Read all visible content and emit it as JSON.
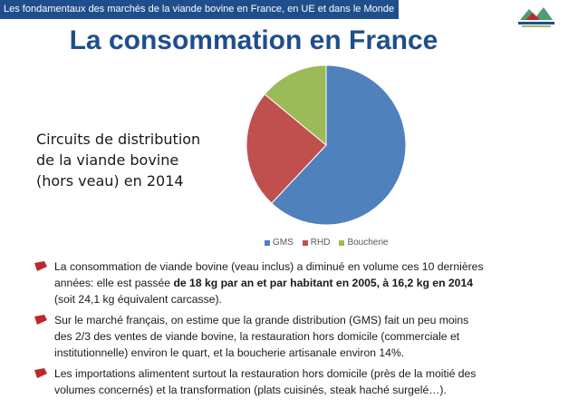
{
  "header": {
    "banner": "Les fondamentaux des marchés de la viande bovine en France, en UE et dans le Monde",
    "title": "La consommation en France"
  },
  "caption": {
    "lines": [
      "Circuits de distribution",
      "de la viande bovine",
      "(hors veau) en 2014"
    ]
  },
  "chart_data": {
    "type": "pie",
    "title": "Circuits de distribution de la viande bovine (hors veau) en 2014",
    "categories": [
      "GMS",
      "RHD",
      "Boucherie"
    ],
    "values": [
      62,
      24,
      14
    ],
    "colors": [
      "#4f81bd",
      "#c0504d",
      "#9bbb59"
    ],
    "legend_position": "bottom"
  },
  "bullets": [
    {
      "line1": "La consommation de viande bovine (veau inclus) a diminué en volume ces 10 dernières",
      "line2_pre": "années: elle est passée ",
      "line2_bold": "de 18 kg par an et par habitant en 2005, à 16,2 kg en 2014",
      "line3": "(soit 24,1 kg équivalent carcasse)."
    },
    {
      "line1": "Sur le marché français, on estime que la grande distribution (GMS) fait un peu moins",
      "line2": "des 2/3 des ventes de viande bovine, la restauration hors domicile (commerciale et",
      "line3": "institutionnelle) environ le quart, et la boucherie artisanale environ 14%."
    },
    {
      "line1": "Les importations alimentent surtout la restauration hors domicile (près de la moitié des",
      "line2": "volumes concernés) et la transformation (plats cuisinés, steak haché surgelé…)."
    }
  ],
  "colors": {
    "banner": "#1f4e8c",
    "bullet_mark": "#c0272d"
  }
}
